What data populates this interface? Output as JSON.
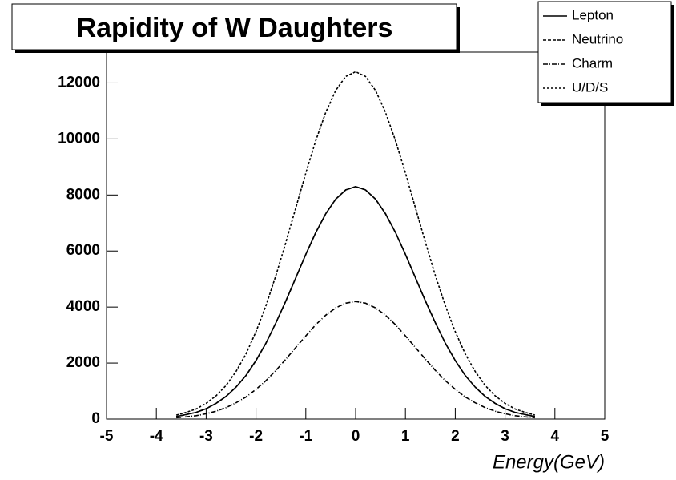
{
  "chart_data": {
    "type": "line",
    "title": "Rapidity of W Daughters",
    "x_label": "Energy(GeV)",
    "x": [
      -3.6,
      -3.4,
      -3.2,
      -3.0,
      -2.8,
      -2.6,
      -2.4,
      -2.2,
      -2.0,
      -1.8,
      -1.6,
      -1.4,
      -1.2,
      -1.0,
      -0.8,
      -0.6,
      -0.4,
      -0.2,
      0,
      0.2,
      0.4,
      0.6,
      0.8,
      1.0,
      1.2,
      1.4,
      1.6,
      1.8,
      2.0,
      2.2,
      2.4,
      2.6,
      2.8,
      3.0,
      3.2,
      3.4,
      3.6
    ],
    "series": [
      {
        "name": "Lepton",
        "color": "#000000",
        "dash": "none",
        "values": [
          90,
          160,
          240,
          370,
          560,
          810,
          1140,
          1560,
          2090,
          2710,
          3440,
          4220,
          5050,
          5880,
          6660,
          7330,
          7850,
          8180,
          8300,
          8180,
          7850,
          7330,
          6660,
          5880,
          5050,
          4220,
          3440,
          2710,
          2090,
          1560,
          1140,
          810,
          560,
          370,
          240,
          160,
          90
        ]
      },
      {
        "name": "Neutrino",
        "color": "#000000",
        "dash": "4 2",
        "values": [
          90,
          160,
          240,
          370,
          560,
          810,
          1140,
          1560,
          2090,
          2710,
          3440,
          4220,
          5050,
          5880,
          6660,
          7330,
          7850,
          8180,
          8300,
          8180,
          7850,
          7330,
          6660,
          5880,
          5050,
          4220,
          3440,
          2710,
          2090,
          1560,
          1140,
          810,
          560,
          370,
          240,
          160,
          90
        ]
      },
      {
        "name": "Charm",
        "color": "#000000",
        "dash": "6 2 1 2",
        "values": [
          50,
          80,
          120,
          190,
          280,
          410,
          580,
          790,
          1060,
          1370,
          1740,
          2140,
          2560,
          2970,
          3370,
          3710,
          3970,
          4140,
          4200,
          4140,
          3970,
          3710,
          3370,
          2970,
          2560,
          2140,
          1740,
          1370,
          1060,
          790,
          580,
          410,
          280,
          190,
          120,
          80,
          50
        ]
      },
      {
        "name": "U/D/S",
        "color": "#000000",
        "dash": "3 2",
        "values": [
          140,
          240,
          360,
          560,
          830,
          1200,
          1700,
          2330,
          3120,
          4050,
          5130,
          6310,
          7550,
          8780,
          9940,
          10950,
          11730,
          12230,
          12400,
          12230,
          11730,
          10950,
          9940,
          8780,
          7550,
          6310,
          5130,
          4050,
          3120,
          2330,
          1700,
          1200,
          830,
          560,
          360,
          240,
          140
        ]
      }
    ],
    "xlim": [
      -5,
      5
    ],
    "xticks": [
      -5,
      -4,
      -3,
      -2,
      -1,
      0,
      1,
      2,
      3,
      4,
      5
    ],
    "ylim": [
      0,
      13100
    ],
    "yticks": [
      0,
      2000,
      4000,
      6000,
      8000,
      10000,
      12000
    ]
  }
}
